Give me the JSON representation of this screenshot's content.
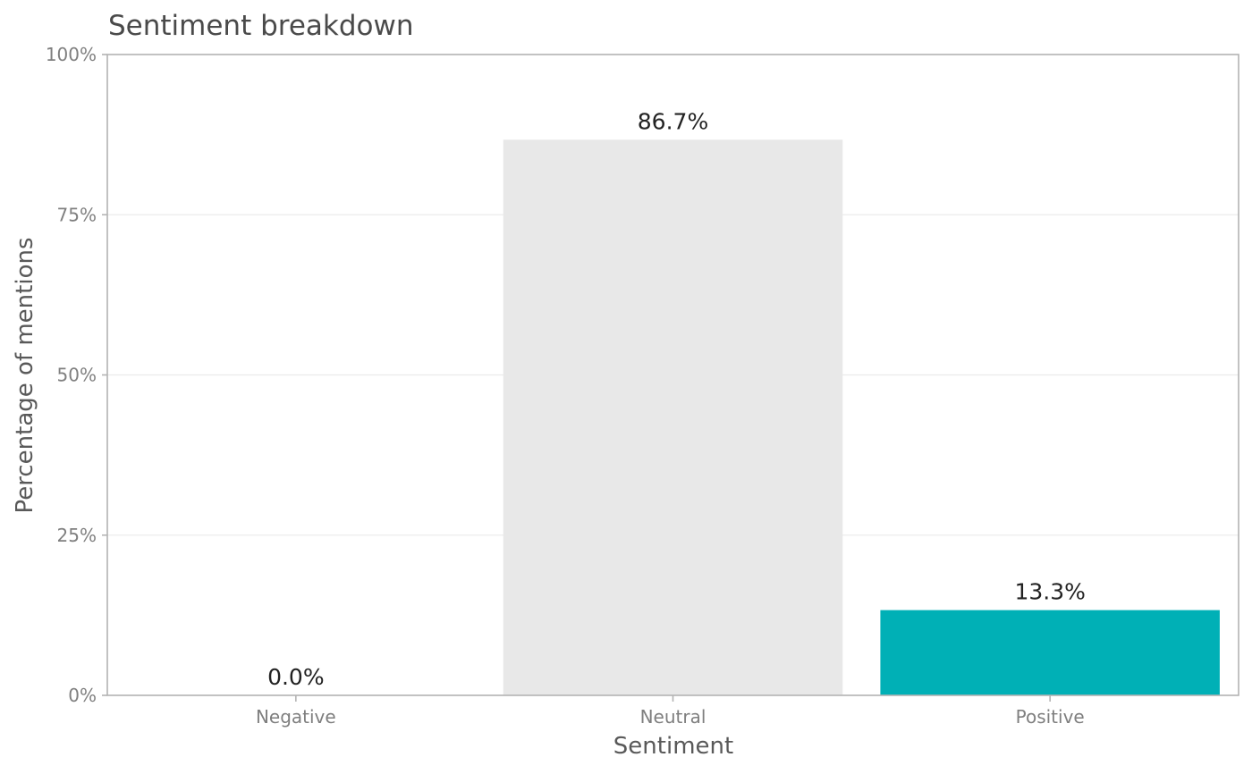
{
  "chart_data": {
    "type": "bar",
    "title": "Sentiment breakdown",
    "xlabel": "Sentiment",
    "ylabel": "Percentage of mentions",
    "categories": [
      "Negative",
      "Neutral",
      "Positive"
    ],
    "values": [
      0.0,
      86.7,
      13.3
    ],
    "value_labels": [
      "0.0%",
      "86.7%",
      "13.3%"
    ],
    "colors": [
      "#e8e8e8",
      "#e8e8e8",
      "#00b0b6"
    ],
    "ylim": [
      0,
      100
    ],
    "yticks": [
      0,
      25,
      50,
      75,
      100
    ],
    "ytick_labels": [
      "0%",
      "25%",
      "50%",
      "75%",
      "100%"
    ],
    "grid": true,
    "legend": "none"
  }
}
